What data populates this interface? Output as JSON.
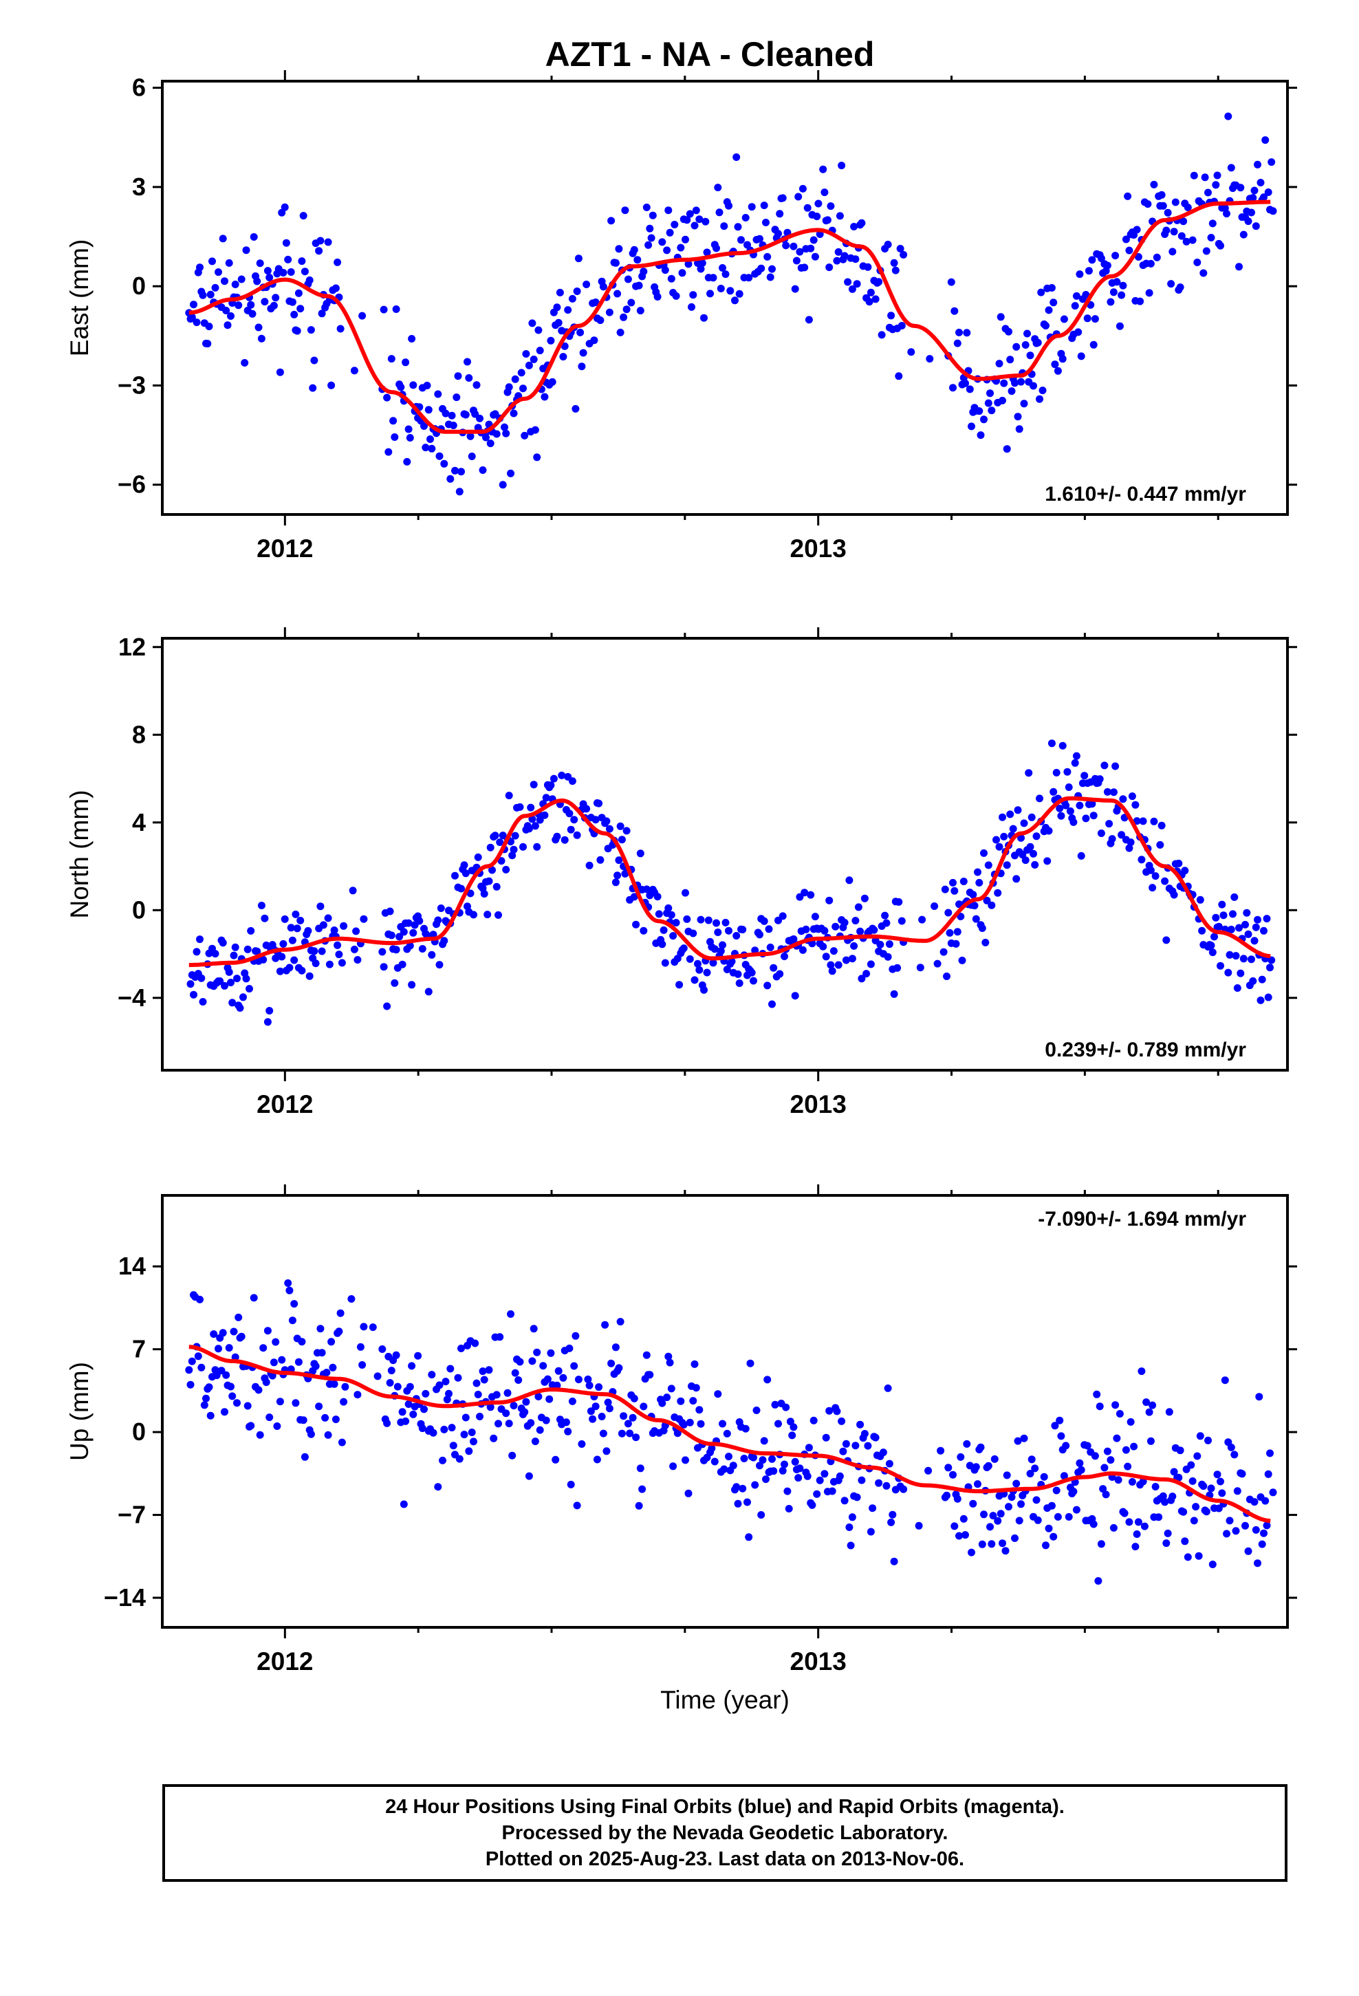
{
  "title": "AZT1  - NA - Cleaned",
  "colors": {
    "points": "#0000ff",
    "fit": "#ff0000",
    "frame": "#000000"
  },
  "xlabel": "Time (year)",
  "footer": {
    "line1": "24 Hour Positions Using Final Orbits (blue) and Rapid Orbits (magenta).",
    "line2": "Processed by the Nevada Geodetic Laboratory.",
    "line3": "Plotted on 2025-Aug-23. Last data on 2013-Nov-06."
  },
  "chart_data": [
    {
      "type": "scatter",
      "ylabel": "East (mm)",
      "xlim": [
        2011.77,
        2013.88
      ],
      "ylim": [
        -6.9,
        6.2
      ],
      "xticks": [
        2012,
        2013
      ],
      "xtick_labels": [
        "2012",
        "2013"
      ],
      "yticks": [
        -6,
        -3,
        0,
        3,
        6
      ],
      "ytick_labels": [
        "−6",
        "−3",
        "0",
        "3",
        "6"
      ],
      "rate": "1.610+/- 0.447 mm/yr",
      "rate_position": "bottom-right",
      "fit": {
        "x": [
          2011.82,
          2011.9,
          2012.0,
          2012.08,
          2012.2,
          2012.3,
          2012.37,
          2012.45,
          2012.55,
          2012.65,
          2012.75,
          2012.85,
          2013.0,
          2013.08,
          2013.18,
          2013.3,
          2013.38,
          2013.45,
          2013.55,
          2013.65,
          2013.75,
          2013.85
        ],
        "y": [
          -0.8,
          -0.4,
          0.2,
          -0.3,
          -3.2,
          -4.4,
          -4.4,
          -3.4,
          -1.2,
          0.6,
          0.8,
          1.0,
          1.7,
          1.2,
          -1.2,
          -2.8,
          -2.7,
          -1.5,
          0.3,
          2.0,
          2.5,
          2.55
        ]
      },
      "points_envelope": {
        "spread": 1.3
      }
    },
    {
      "type": "scatter",
      "ylabel": "North (mm)",
      "xlim": [
        2011.77,
        2013.88
      ],
      "ylim": [
        -7.3,
        12.4
      ],
      "xticks": [
        2012,
        2013
      ],
      "xtick_labels": [
        "2012",
        "2013"
      ],
      "yticks": [
        -4,
        0,
        4,
        8,
        12
      ],
      "ytick_labels": [
        "−4",
        "0",
        "4",
        "8",
        "12"
      ],
      "rate": "0.239+/- 0.789 mm/yr",
      "rate_position": "bottom-right",
      "fit": {
        "x": [
          2011.82,
          2011.9,
          2012.0,
          2012.1,
          2012.2,
          2012.28,
          2012.38,
          2012.45,
          2012.52,
          2012.6,
          2012.7,
          2012.8,
          2012.9,
          2013.0,
          2013.1,
          2013.2,
          2013.3,
          2013.38,
          2013.47,
          2013.55,
          2013.65,
          2013.75,
          2013.85
        ],
        "y": [
          -2.5,
          -2.4,
          -1.8,
          -1.3,
          -1.5,
          -1.3,
          2.0,
          4.3,
          5.0,
          3.5,
          -0.5,
          -2.2,
          -2.0,
          -1.3,
          -1.2,
          -1.4,
          0.5,
          3.5,
          5.1,
          5.0,
          2.0,
          -1.0,
          -2.1
        ]
      },
      "points_envelope": {
        "spread": 1.4
      }
    },
    {
      "type": "scatter",
      "ylabel": "Up (mm)",
      "xlim": [
        2011.77,
        2013.88
      ],
      "ylim": [
        -16.5,
        20.0
      ],
      "xticks": [
        2012,
        2013
      ],
      "xtick_labels": [
        "2012",
        "2013"
      ],
      "yticks": [
        -14,
        -7,
        0,
        7,
        14
      ],
      "ytick_labels": [
        "−14",
        "−7",
        "0",
        "7",
        "14"
      ],
      "rate": "-7.090+/- 1.694 mm/yr",
      "rate_position": "top-right",
      "fit": {
        "x": [
          2011.82,
          2011.9,
          2012.0,
          2012.1,
          2012.2,
          2012.3,
          2012.4,
          2012.5,
          2012.6,
          2012.7,
          2012.8,
          2012.9,
          2013.0,
          2013.1,
          2013.2,
          2013.3,
          2013.4,
          2013.5,
          2013.55,
          2013.65,
          2013.75,
          2013.85
        ],
        "y": [
          7.2,
          6.0,
          5.0,
          4.5,
          3.0,
          2.2,
          2.5,
          3.6,
          3.2,
          1.0,
          -1.0,
          -1.8,
          -2.0,
          -3.0,
          -4.5,
          -5.0,
          -4.8,
          -3.8,
          -3.5,
          -4.0,
          -5.8,
          -7.5
        ]
      },
      "points_envelope": {
        "spread": 4.2
      }
    }
  ]
}
